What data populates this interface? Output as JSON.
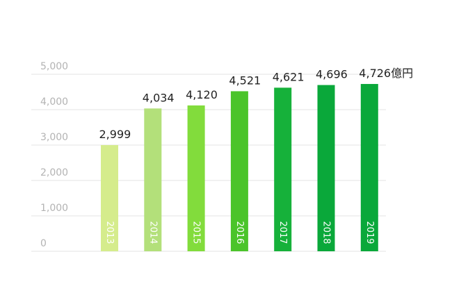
{
  "chart_data": {
    "type": "bar",
    "categories": [
      "2013",
      "2014",
      "2015",
      "2016",
      "2017",
      "2018",
      "2019"
    ],
    "values": [
      2999,
      4034,
      4120,
      4521,
      4621,
      4696,
      4726
    ],
    "value_labels": [
      "2,999",
      "4,034",
      "4,120",
      "4,521",
      "4,621",
      "4,696",
      "4,726億円"
    ],
    "bar_colors": [
      "#d5ec8c",
      "#b3e07a",
      "#82dc3c",
      "#4bc42a",
      "#16b13a",
      "#0aa83a",
      "#0aa83a"
    ],
    "yticks": [
      "0",
      "1,000",
      "2,000",
      "3,000",
      "4,000",
      "5,000"
    ],
    "ytick_values": [
      0,
      1000,
      2000,
      3000,
      4000,
      5000
    ],
    "ylim": [
      0,
      5000
    ],
    "grid": true,
    "title": "",
    "xlabel": "",
    "ylabel": ""
  }
}
